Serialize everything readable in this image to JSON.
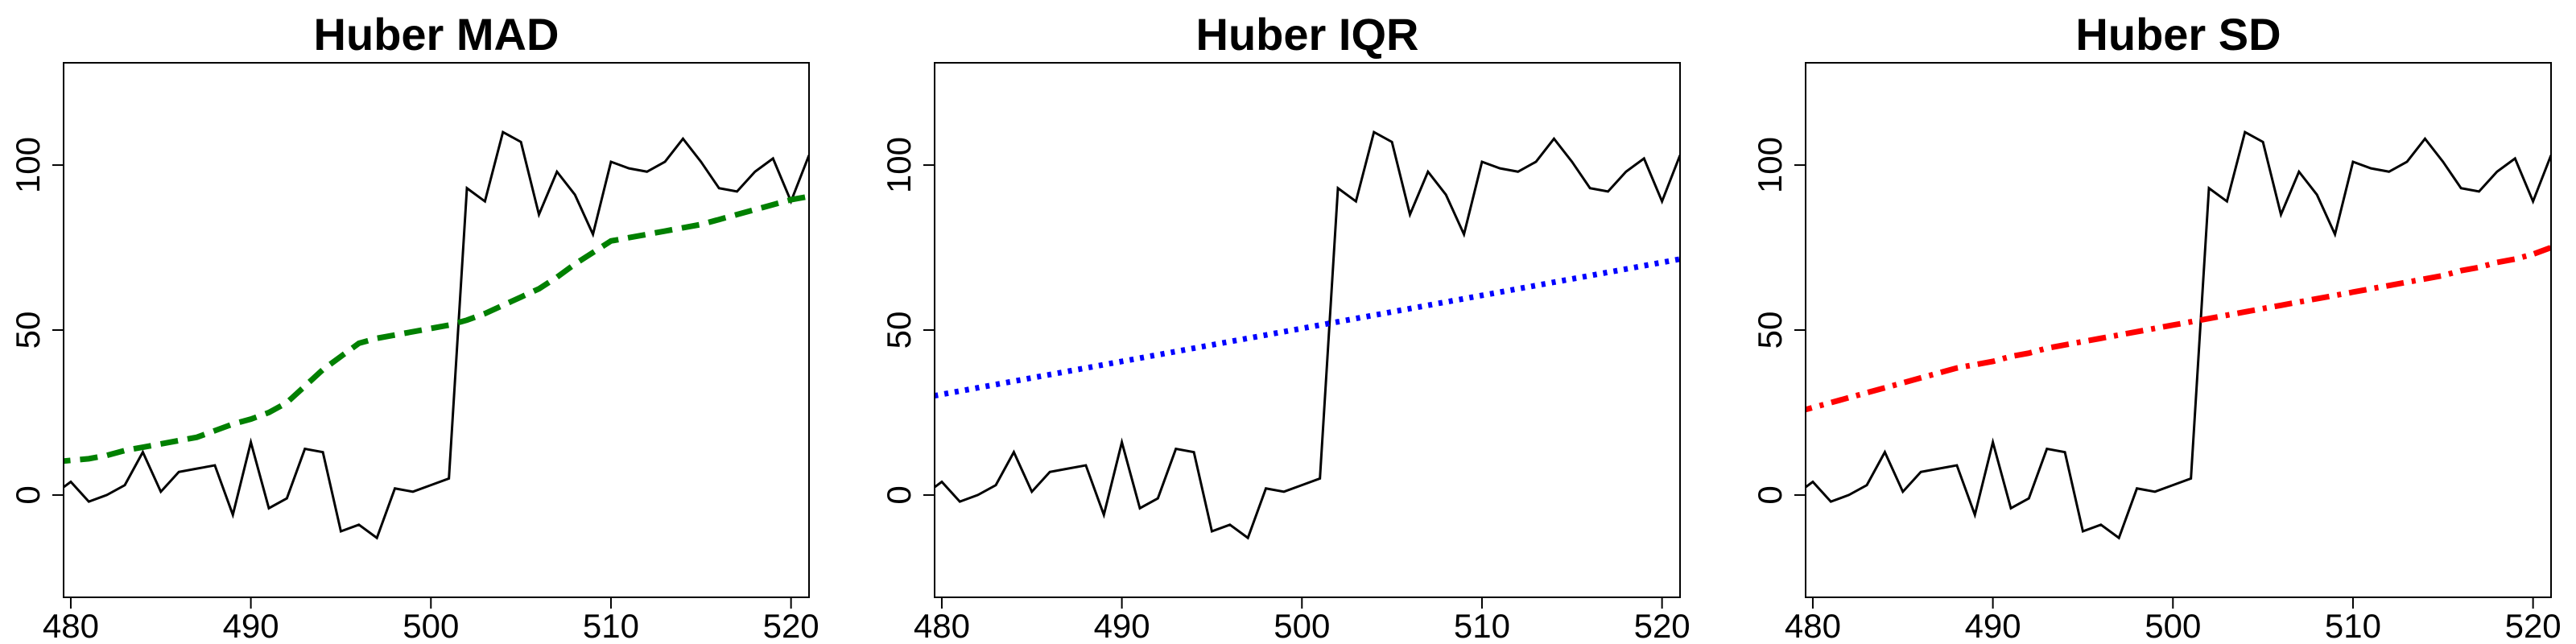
{
  "chart_data": [
    {
      "type": "line",
      "title": "Huber MAD",
      "x": [
        479,
        480,
        481,
        482,
        483,
        484,
        485,
        486,
        487,
        488,
        489,
        490,
        491,
        492,
        493,
        494,
        495,
        496,
        497,
        498,
        499,
        500,
        501,
        502,
        503,
        504,
        505,
        506,
        507,
        508,
        509,
        510,
        511,
        512,
        513,
        514,
        515,
        516,
        517,
        518,
        519,
        520,
        521
      ],
      "series": [
        {
          "color": "#000000",
          "dash": "solid",
          "values": [
            0,
            4,
            -2,
            0,
            3,
            13,
            1,
            7,
            8,
            9,
            -6,
            16,
            -4,
            -1,
            14,
            13,
            -11,
            -9,
            -13,
            2,
            1,
            3,
            5,
            93,
            89,
            110,
            107,
            85,
            98,
            91,
            79,
            101,
            99,
            98,
            101,
            108,
            101,
            93,
            92,
            98,
            102,
            89,
            103
          ]
        },
        {
          "color": "#008000",
          "dash": "dashed",
          "values": [
            10,
            10.5,
            11,
            12,
            13.5,
            14.5,
            15.5,
            16.5,
            17.5,
            19.5,
            21.5,
            23,
            25,
            28,
            33,
            38,
            42,
            46,
            47.5,
            48.5,
            49.5,
            50.5,
            51.5,
            53,
            55,
            57.5,
            60,
            62.5,
            66,
            70,
            73.5,
            77,
            78,
            79,
            80,
            81,
            82,
            83.5,
            85,
            86.5,
            88,
            89.5,
            90.5
          ]
        }
      ],
      "xlim": [
        479.6,
        521
      ],
      "ylim": [
        -31,
        131
      ],
      "xticks": [
        480,
        490,
        500,
        510,
        520
      ],
      "yticks": [
        0,
        50,
        100
      ],
      "grid": false
    },
    {
      "type": "line",
      "title": "Huber IQR",
      "x": [
        479,
        480,
        481,
        482,
        483,
        484,
        485,
        486,
        487,
        488,
        489,
        490,
        491,
        492,
        493,
        494,
        495,
        496,
        497,
        498,
        499,
        500,
        501,
        502,
        503,
        504,
        505,
        506,
        507,
        508,
        509,
        510,
        511,
        512,
        513,
        514,
        515,
        516,
        517,
        518,
        519,
        520,
        521
      ],
      "series": [
        {
          "color": "#000000",
          "dash": "solid",
          "values": [
            0,
            4,
            -2,
            0,
            3,
            13,
            1,
            7,
            8,
            9,
            -6,
            16,
            -4,
            -1,
            14,
            13,
            -11,
            -9,
            -13,
            2,
            1,
            3,
            5,
            93,
            89,
            110,
            107,
            85,
            98,
            91,
            79,
            101,
            99,
            98,
            101,
            108,
            101,
            93,
            92,
            98,
            102,
            89,
            103
          ]
        },
        {
          "color": "#0000ff",
          "dash": "dotted",
          "values": [
            29.5,
            30.5,
            31.5,
            32.5,
            33.5,
            34.5,
            35.5,
            36.5,
            37.5,
            38.5,
            39.5,
            40.5,
            41.5,
            42.5,
            43.5,
            44.5,
            45.5,
            46.5,
            47.5,
            48.5,
            49.5,
            50.5,
            51.5,
            52.5,
            53.5,
            54.5,
            55.5,
            56.5,
            57.5,
            58.5,
            59.5,
            60.5,
            61.5,
            62.5,
            63.5,
            64.5,
            65.5,
            66.5,
            67.5,
            68.5,
            69.5,
            70.5,
            71.5
          ]
        }
      ],
      "xlim": [
        479.6,
        521
      ],
      "ylim": [
        -31,
        131
      ],
      "xticks": [
        480,
        490,
        500,
        510,
        520
      ],
      "yticks": [
        0,
        50,
        100
      ],
      "grid": false
    },
    {
      "type": "line",
      "title": "Huber SD",
      "x": [
        479,
        480,
        481,
        482,
        483,
        484,
        485,
        486,
        487,
        488,
        489,
        490,
        491,
        492,
        493,
        494,
        495,
        496,
        497,
        498,
        499,
        500,
        501,
        502,
        503,
        504,
        505,
        506,
        507,
        508,
        509,
        510,
        511,
        512,
        513,
        514,
        515,
        516,
        517,
        518,
        519,
        520,
        521
      ],
      "series": [
        {
          "color": "#000000",
          "dash": "solid",
          "values": [
            0,
            4,
            -2,
            0,
            3,
            13,
            1,
            7,
            8,
            9,
            -6,
            16,
            -4,
            -1,
            14,
            13,
            -11,
            -9,
            -13,
            2,
            1,
            3,
            5,
            93,
            89,
            110,
            107,
            85,
            98,
            91,
            79,
            101,
            99,
            98,
            101,
            108,
            101,
            93,
            92,
            98,
            102,
            89,
            103
          ]
        },
        {
          "color": "#ff0000",
          "dash": "dashdot",
          "values": [
            25,
            26.5,
            28,
            29.5,
            31,
            32.5,
            34,
            35.5,
            37,
            38.5,
            39.5,
            40.5,
            42,
            43,
            44.5,
            45.5,
            46.5,
            47.5,
            48.5,
            49.5,
            50.5,
            51.5,
            52.5,
            53.5,
            54.5,
            55.5,
            56.5,
            57.5,
            58.5,
            59.5,
            60.5,
            61.5,
            62.5,
            63.5,
            64.5,
            65.5,
            66.5,
            68,
            69,
            70.5,
            71.5,
            73,
            75
          ]
        }
      ],
      "xlim": [
        479.6,
        521
      ],
      "ylim": [
        -31,
        131
      ],
      "xticks": [
        480,
        490,
        500,
        510,
        520
      ],
      "yticks": [
        0,
        50,
        100
      ],
      "grid": false
    }
  ]
}
